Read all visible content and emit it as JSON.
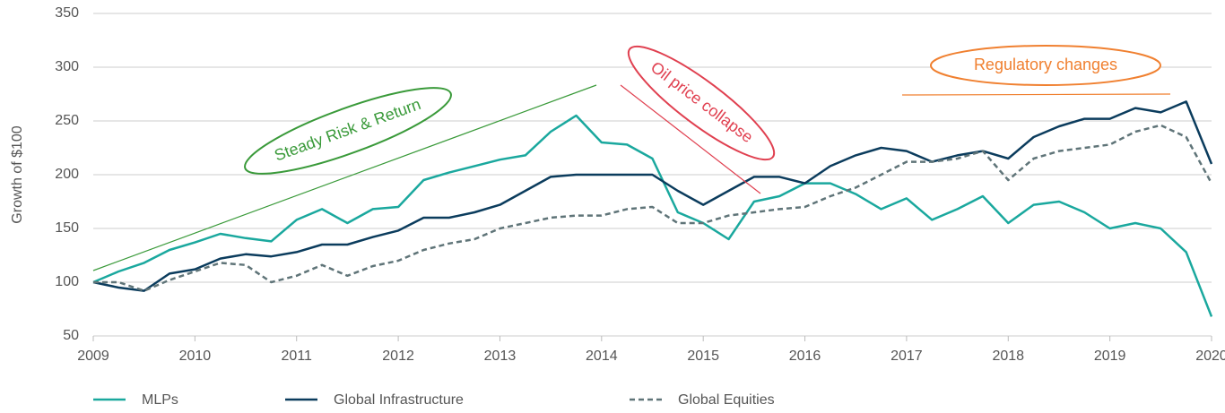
{
  "chart_data": {
    "type": "line",
    "ylabel": "Growth of $100",
    "x": [
      2009,
      2009.25,
      2009.5,
      2009.75,
      2010,
      2010.25,
      2010.5,
      2010.75,
      2011,
      2011.25,
      2011.5,
      2011.75,
      2012,
      2012.25,
      2012.5,
      2012.75,
      2013,
      2013.25,
      2013.5,
      2013.75,
      2014,
      2014.25,
      2014.5,
      2014.75,
      2015,
      2015.25,
      2015.5,
      2015.75,
      2016,
      2016.25,
      2016.5,
      2016.75,
      2017,
      2017.25,
      2017.5,
      2017.75,
      2018,
      2018.25,
      2018.5,
      2018.75,
      2019,
      2019.25,
      2019.5,
      2019.75,
      2020
    ],
    "series": [
      {
        "name": "MLPs",
        "color": "#1aa89e",
        "dash": false,
        "values": [
          100,
          110,
          118,
          130,
          137,
          145,
          141,
          138,
          158,
          168,
          155,
          168,
          170,
          195,
          202,
          208,
          214,
          218,
          240,
          255,
          230,
          228,
          215,
          165,
          155,
          140,
          175,
          180,
          192,
          192,
          182,
          168,
          178,
          158,
          168,
          180,
          155,
          172,
          175,
          165,
          150,
          155,
          150,
          128,
          68
        ]
      },
      {
        "name": "Global Infrastructure",
        "color": "#0b3c5d",
        "dash": false,
        "values": [
          100,
          95,
          92,
          108,
          112,
          122,
          126,
          124,
          128,
          135,
          135,
          142,
          148,
          160,
          160,
          165,
          172,
          185,
          198,
          200,
          200,
          200,
          200,
          185,
          172,
          185,
          198,
          198,
          192,
          208,
          218,
          225,
          222,
          212,
          218,
          222,
          215,
          235,
          245,
          252,
          252,
          262,
          258,
          268,
          210
        ]
      },
      {
        "name": "Global Equities",
        "color": "#5f7478",
        "dash": true,
        "values": [
          100,
          100,
          92,
          102,
          110,
          118,
          116,
          100,
          106,
          116,
          106,
          115,
          120,
          130,
          136,
          140,
          150,
          155,
          160,
          162,
          162,
          168,
          170,
          155,
          155,
          162,
          165,
          168,
          170,
          180,
          188,
          200,
          212,
          212,
          215,
          222,
          195,
          215,
          222,
          225,
          228,
          240,
          246,
          235,
          192
        ]
      }
    ],
    "xlim": [
      2009,
      2020
    ],
    "xticks": [
      2009,
      2010,
      2011,
      2012,
      2013,
      2014,
      2015,
      2016,
      2017,
      2018,
      2019,
      2020
    ],
    "ylim": [
      50,
      350
    ],
    "yticks": [
      50,
      100,
      150,
      200,
      250,
      300,
      350
    ],
    "grid": true,
    "annotations": [
      "Steady Risk & Return",
      "Oil price collapse",
      "Regulatory changes"
    ],
    "legend": "bottom"
  }
}
